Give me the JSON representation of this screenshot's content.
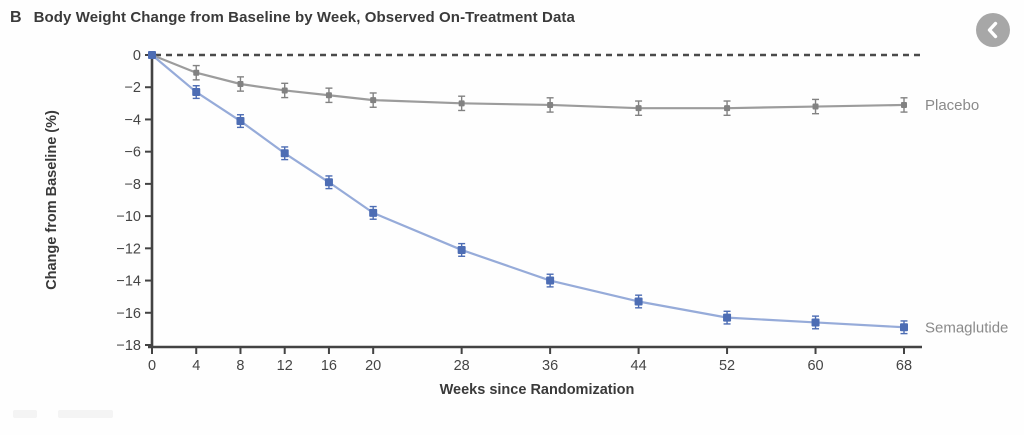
{
  "panel": {
    "label": "B",
    "title": "Body Weight Change from Baseline by Week, Observed On-Treatment Data"
  },
  "nav": {
    "prev_button_icon": "chevron-left-icon"
  },
  "chart_data": {
    "type": "line",
    "title": "Body Weight Change from Baseline by Week, Observed On-Treatment Data",
    "xlabel": "Weeks since Randomization",
    "ylabel": "Change from Baseline (%)",
    "x_ticks": [
      0,
      4,
      8,
      12,
      16,
      20,
      28,
      36,
      44,
      52,
      60,
      68
    ],
    "y_ticks": [
      0,
      -2,
      -4,
      -6,
      -8,
      -10,
      -12,
      -14,
      -16,
      -18
    ],
    "xlim": [
      0,
      69.5
    ],
    "ylim": [
      -18,
      0
    ],
    "grid": false,
    "zero_reference_line": {
      "style": "dashed",
      "y": 0
    },
    "legend_position": "labels-at-line-end",
    "x": [
      0,
      4,
      8,
      12,
      16,
      20,
      28,
      36,
      44,
      52,
      60,
      68
    ],
    "series": [
      {
        "name": "Placebo",
        "values": [
          0,
          -1.1,
          -1.8,
          -2.2,
          -2.5,
          -2.8,
          -3.0,
          -3.1,
          -3.3,
          -3.3,
          -3.2,
          -3.1
        ],
        "error": 0.35,
        "line_color": "#9c9c9c",
        "marker_color": "#828282"
      },
      {
        "name": "Semaglutide",
        "values": [
          0,
          -2.3,
          -4.1,
          -6.1,
          -7.9,
          -9.8,
          -12.1,
          -14.0,
          -15.3,
          -16.3,
          -16.6,
          -16.9
        ],
        "error": 0.3,
        "line_color": "#96abd9",
        "marker_color": "#4d6db4"
      }
    ],
    "colors": {
      "axis": "#434343",
      "tick_label": "#454545",
      "series_label": "#8a8a8a",
      "title": "#3a3a3a",
      "zero_line": "#4a4a4a"
    }
  }
}
